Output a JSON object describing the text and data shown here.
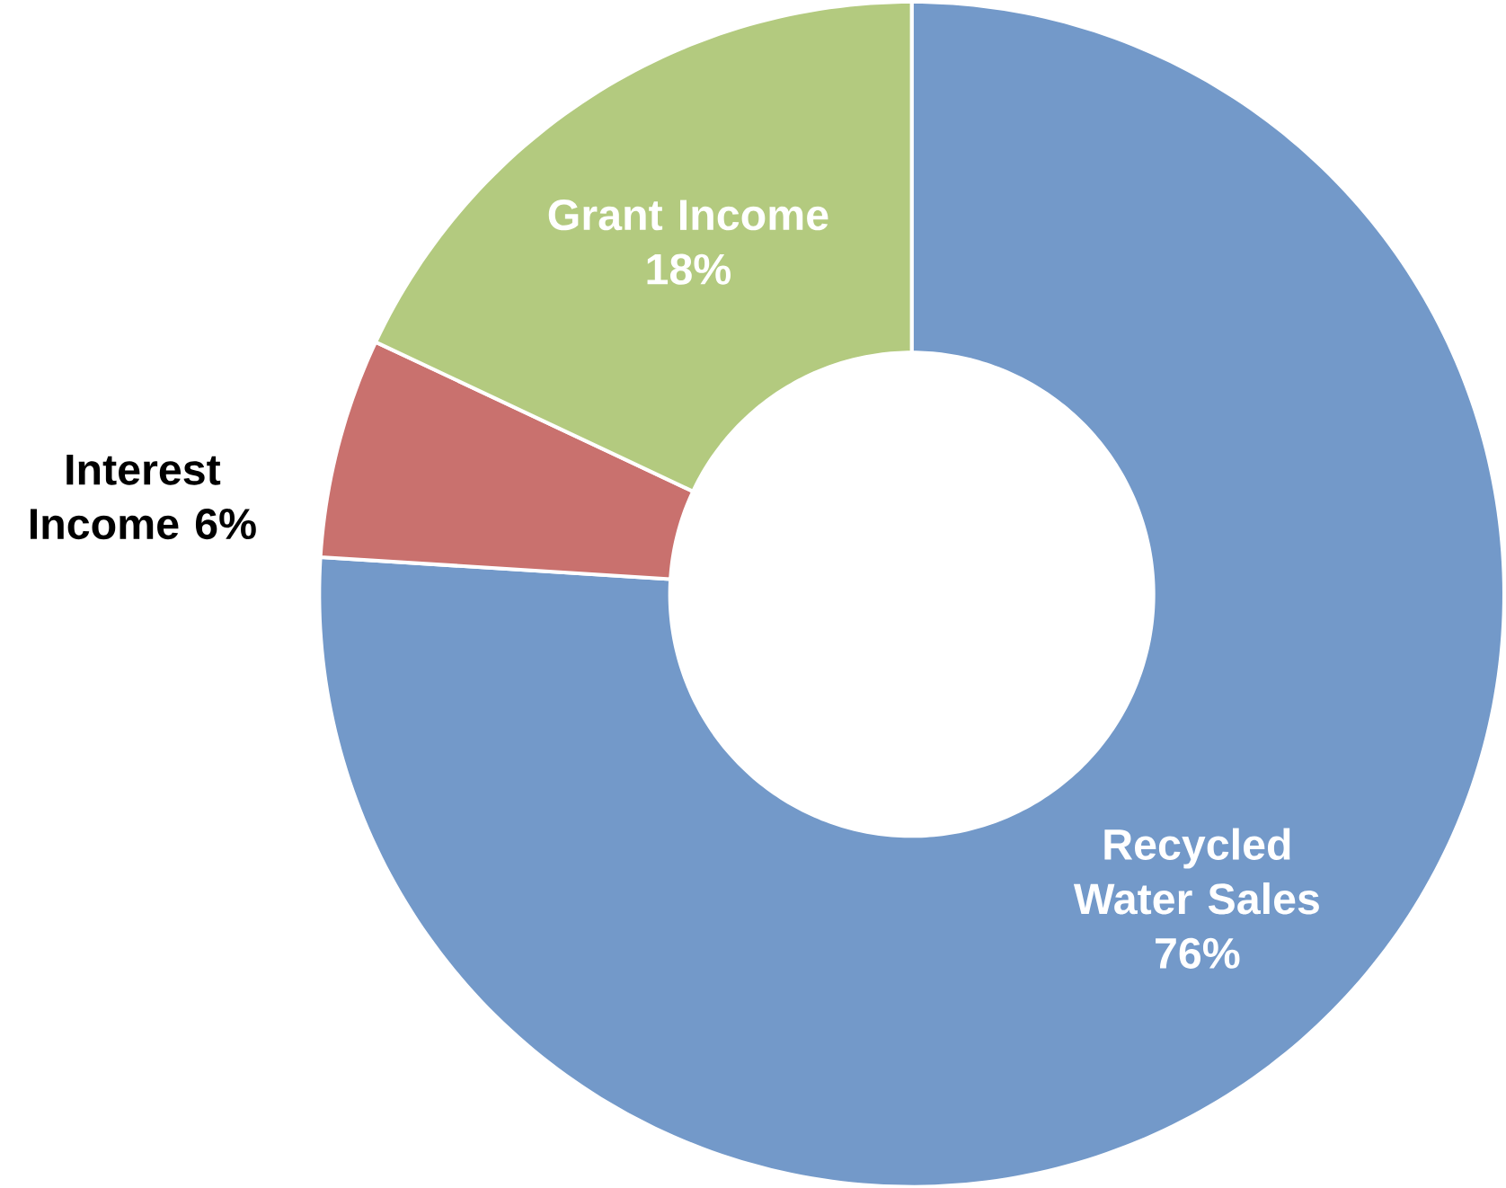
{
  "chart_data": {
    "type": "donut",
    "categories": [
      "Recycled Water Sales",
      "Interest Income",
      "Grant Income"
    ],
    "values": [
      76,
      6,
      18
    ],
    "value_labels": [
      "76%",
      "6%",
      "18%"
    ],
    "colors": [
      "#7399c9",
      "#c9716e",
      "#b3ca7f"
    ]
  }
}
